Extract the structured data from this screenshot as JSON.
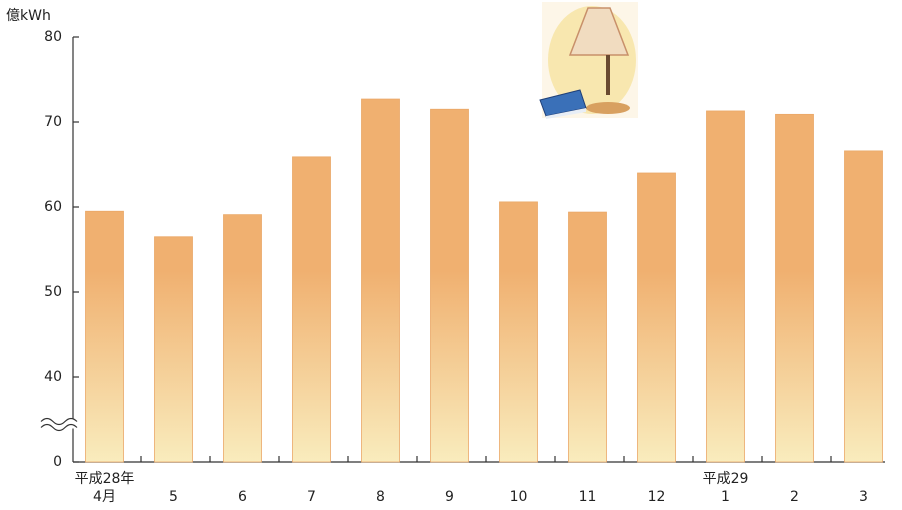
{
  "chart_data": {
    "type": "bar",
    "y_axis_label": "億kWh",
    "categories": [
      "4月",
      "5",
      "6",
      "7",
      "8",
      "9",
      "10",
      "11",
      "12",
      "1",
      "2",
      "3"
    ],
    "year_labels": [
      {
        "label": "平成28年",
        "category": 0
      },
      {
        "label": "平成29",
        "category": 9
      }
    ],
    "values": [
      59.5,
      56.5,
      59.1,
      65.9,
      72.7,
      71.5,
      60.6,
      59.4,
      64.0,
      71.3,
      70.9,
      66.6
    ],
    "color": "#f0b070",
    "ylim": [
      0,
      80
    ],
    "yticks": [
      0,
      40,
      50,
      60,
      70,
      80
    ],
    "axis_break": true
  }
}
